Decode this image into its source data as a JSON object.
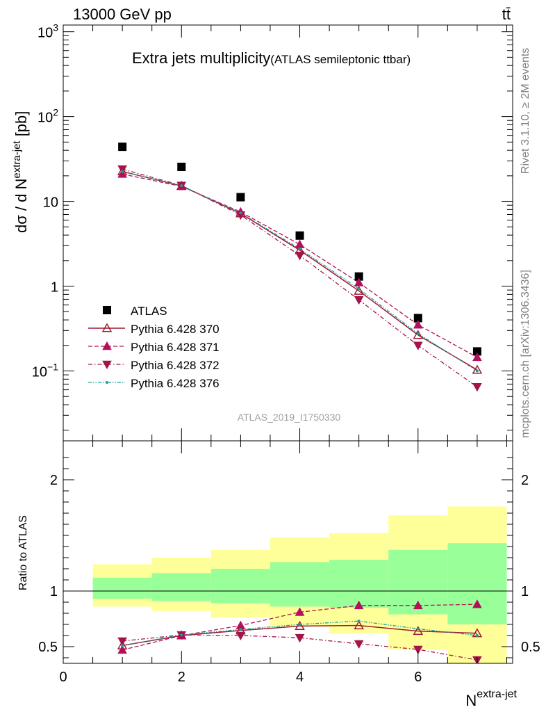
{
  "header": {
    "left": "13000 GeV pp",
    "right": "tt̄"
  },
  "title": {
    "main": "Extra jets multiplicity",
    "sub": "(ATLAS semileptonic ttbar)"
  },
  "side_labels": {
    "rivet": "Rivet 3.1.10, ≥ 2M events",
    "mcplots": "mcplots.cern.ch [arXiv:1306.3436]"
  },
  "analysis_id": "ATLAS_2019_I1750330",
  "chart_data": [
    {
      "type": "scatter",
      "panel": "main",
      "ylabel": "dσ / d N^extra-jet [pb]",
      "yscale": "log",
      "ylim": [
        0.015,
        1200
      ],
      "xlim": [
        0,
        7.6
      ],
      "y_tick_labels": [
        "10^−1",
        "1",
        "10",
        "10^2",
        "10^3"
      ],
      "x": [
        1,
        2,
        3,
        4,
        5,
        6,
        7
      ],
      "series": [
        {
          "name": "ATLAS",
          "color": "#000000",
          "marker": "square",
          "values": [
            44,
            25.5,
            11.2,
            3.95,
            1.3,
            0.42,
            0.17
          ]
        },
        {
          "name": "Pythia 6.428 370",
          "color": "#9e1a2e",
          "marker": "open-triangle-up",
          "line": "solid",
          "values": [
            22.5,
            15.2,
            7.2,
            2.65,
            0.88,
            0.265,
            0.103
          ]
        },
        {
          "name": "Pythia 6.428 371",
          "color": "#b3105c",
          "marker": "filled-triangle-up",
          "line": "dashed",
          "values": [
            21.0,
            15.0,
            7.5,
            3.1,
            1.1,
            0.35,
            0.145
          ]
        },
        {
          "name": "Pythia 6.428 372",
          "color": "#a3154a",
          "marker": "filled-triangle-down",
          "line": "dashdot",
          "values": [
            24.0,
            15.4,
            6.9,
            2.3,
            0.69,
            0.2,
            0.065
          ]
        },
        {
          "name": "Pythia 6.428 376",
          "color": "#1e9e96",
          "marker": "dot",
          "line": "dashdotdot",
          "values": [
            22.5,
            15.3,
            7.3,
            2.75,
            0.93,
            0.275,
            0.1
          ]
        }
      ]
    },
    {
      "type": "scatter",
      "panel": "ratio",
      "ylabel": "Ratio to ATLAS",
      "xlabel": "N^extra-jet",
      "ylim": [
        0.35,
        2.35
      ],
      "xlim": [
        0,
        7.6
      ],
      "x_ticks": [
        0,
        2,
        4,
        6
      ],
      "y_ticks": [
        0.5,
        1,
        2
      ],
      "bands": {
        "edges": [
          0.5,
          1.5,
          2.5,
          3.5,
          4.5,
          5.5,
          6.5,
          7.5
        ],
        "green_low": [
          0.93,
          0.91,
          0.89,
          0.86,
          0.85,
          0.79,
          0.7
        ],
        "green_high": [
          1.12,
          1.16,
          1.2,
          1.26,
          1.28,
          1.37,
          1.43
        ],
        "yellow_low": [
          0.86,
          0.82,
          0.76,
          0.68,
          0.62,
          0.47,
          0.35
        ],
        "yellow_high": [
          1.24,
          1.3,
          1.37,
          1.48,
          1.52,
          1.68,
          1.76
        ]
      },
      "x": [
        1,
        2,
        3,
        4,
        5,
        6,
        7
      ],
      "series": [
        {
          "name": "Pythia 6.428 370",
          "values": [
            0.51,
            0.6,
            0.645,
            0.685,
            0.69,
            0.64,
            0.62
          ]
        },
        {
          "name": "Pythia 6.428 371",
          "values": [
            0.47,
            0.6,
            0.69,
            0.81,
            0.87,
            0.87,
            0.88
          ]
        },
        {
          "name": "Pythia 6.428 372",
          "values": [
            0.55,
            0.605,
            0.6,
            0.58,
            0.525,
            0.475,
            0.38
          ]
        },
        {
          "name": "Pythia 6.428 376",
          "values": [
            0.51,
            0.605,
            0.655,
            0.7,
            0.73,
            0.66,
            0.6
          ]
        }
      ]
    }
  ]
}
